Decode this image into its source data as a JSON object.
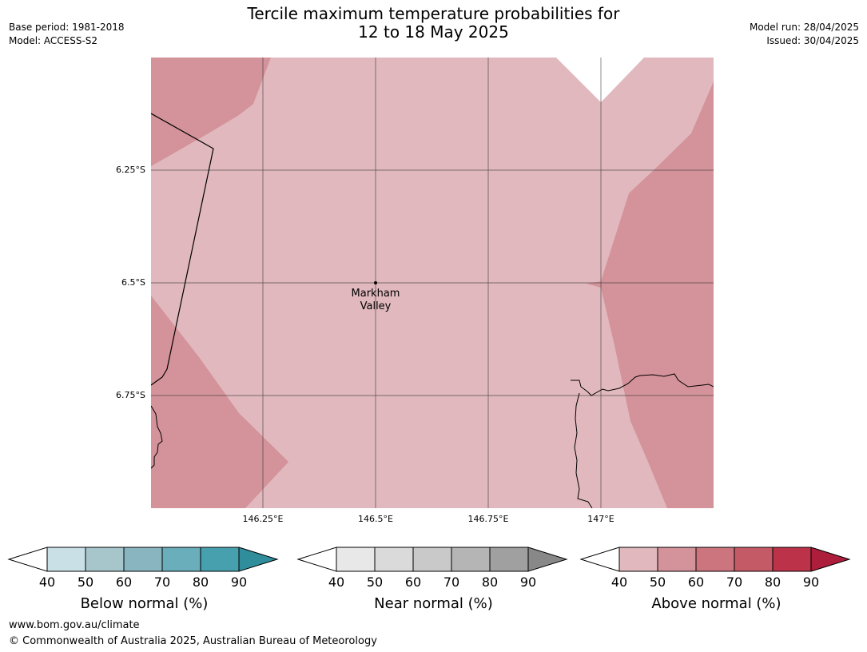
{
  "header": {
    "title_line1": "Tercile maximum temperature probabilities for",
    "title_line2": "12 to 18 May 2025",
    "base_period": "Base period: 1981-2018",
    "model": "Model: ACCESS-S2",
    "model_run": "Model run: 28/04/2025",
    "issued": "Issued: 30/04/2025"
  },
  "map": {
    "lat_ticks": [
      "6.25°S",
      "6.5°S",
      "6.75°S"
    ],
    "lon_ticks": [
      "146.25°E",
      "146.5°E",
      "146.75°E",
      "147°E"
    ],
    "place_line1": "Markham",
    "place_line2": "Valley"
  },
  "legends": [
    {
      "title": "Below normal (%)",
      "ticks": [
        "40",
        "50",
        "60",
        "70",
        "80",
        "90"
      ],
      "colors": [
        "#c9e0e6",
        "#a6c6cc",
        "#89b5c1",
        "#6aaebb",
        "#47a0ae",
        "#2f8d9c"
      ]
    },
    {
      "title": "Near normal (%)",
      "ticks": [
        "40",
        "50",
        "60",
        "70",
        "80",
        "90"
      ],
      "colors": [
        "#e8e8e8",
        "#dadada",
        "#c9c9c9",
        "#b5b5b5",
        "#a0a0a0",
        "#888888"
      ]
    },
    {
      "title": "Above normal (%)",
      "ticks": [
        "40",
        "50",
        "60",
        "70",
        "80",
        "90"
      ],
      "colors": [
        "#e0b8bd",
        "#d4929a",
        "#cc757e",
        "#c45a66",
        "#bb3249",
        "#ad1d3c"
      ]
    }
  ],
  "footer": {
    "url": "www.bom.gov.au/climate",
    "copyright": "© Commonwealth of Australia 2025, Australian Bureau of Meteorology"
  }
}
